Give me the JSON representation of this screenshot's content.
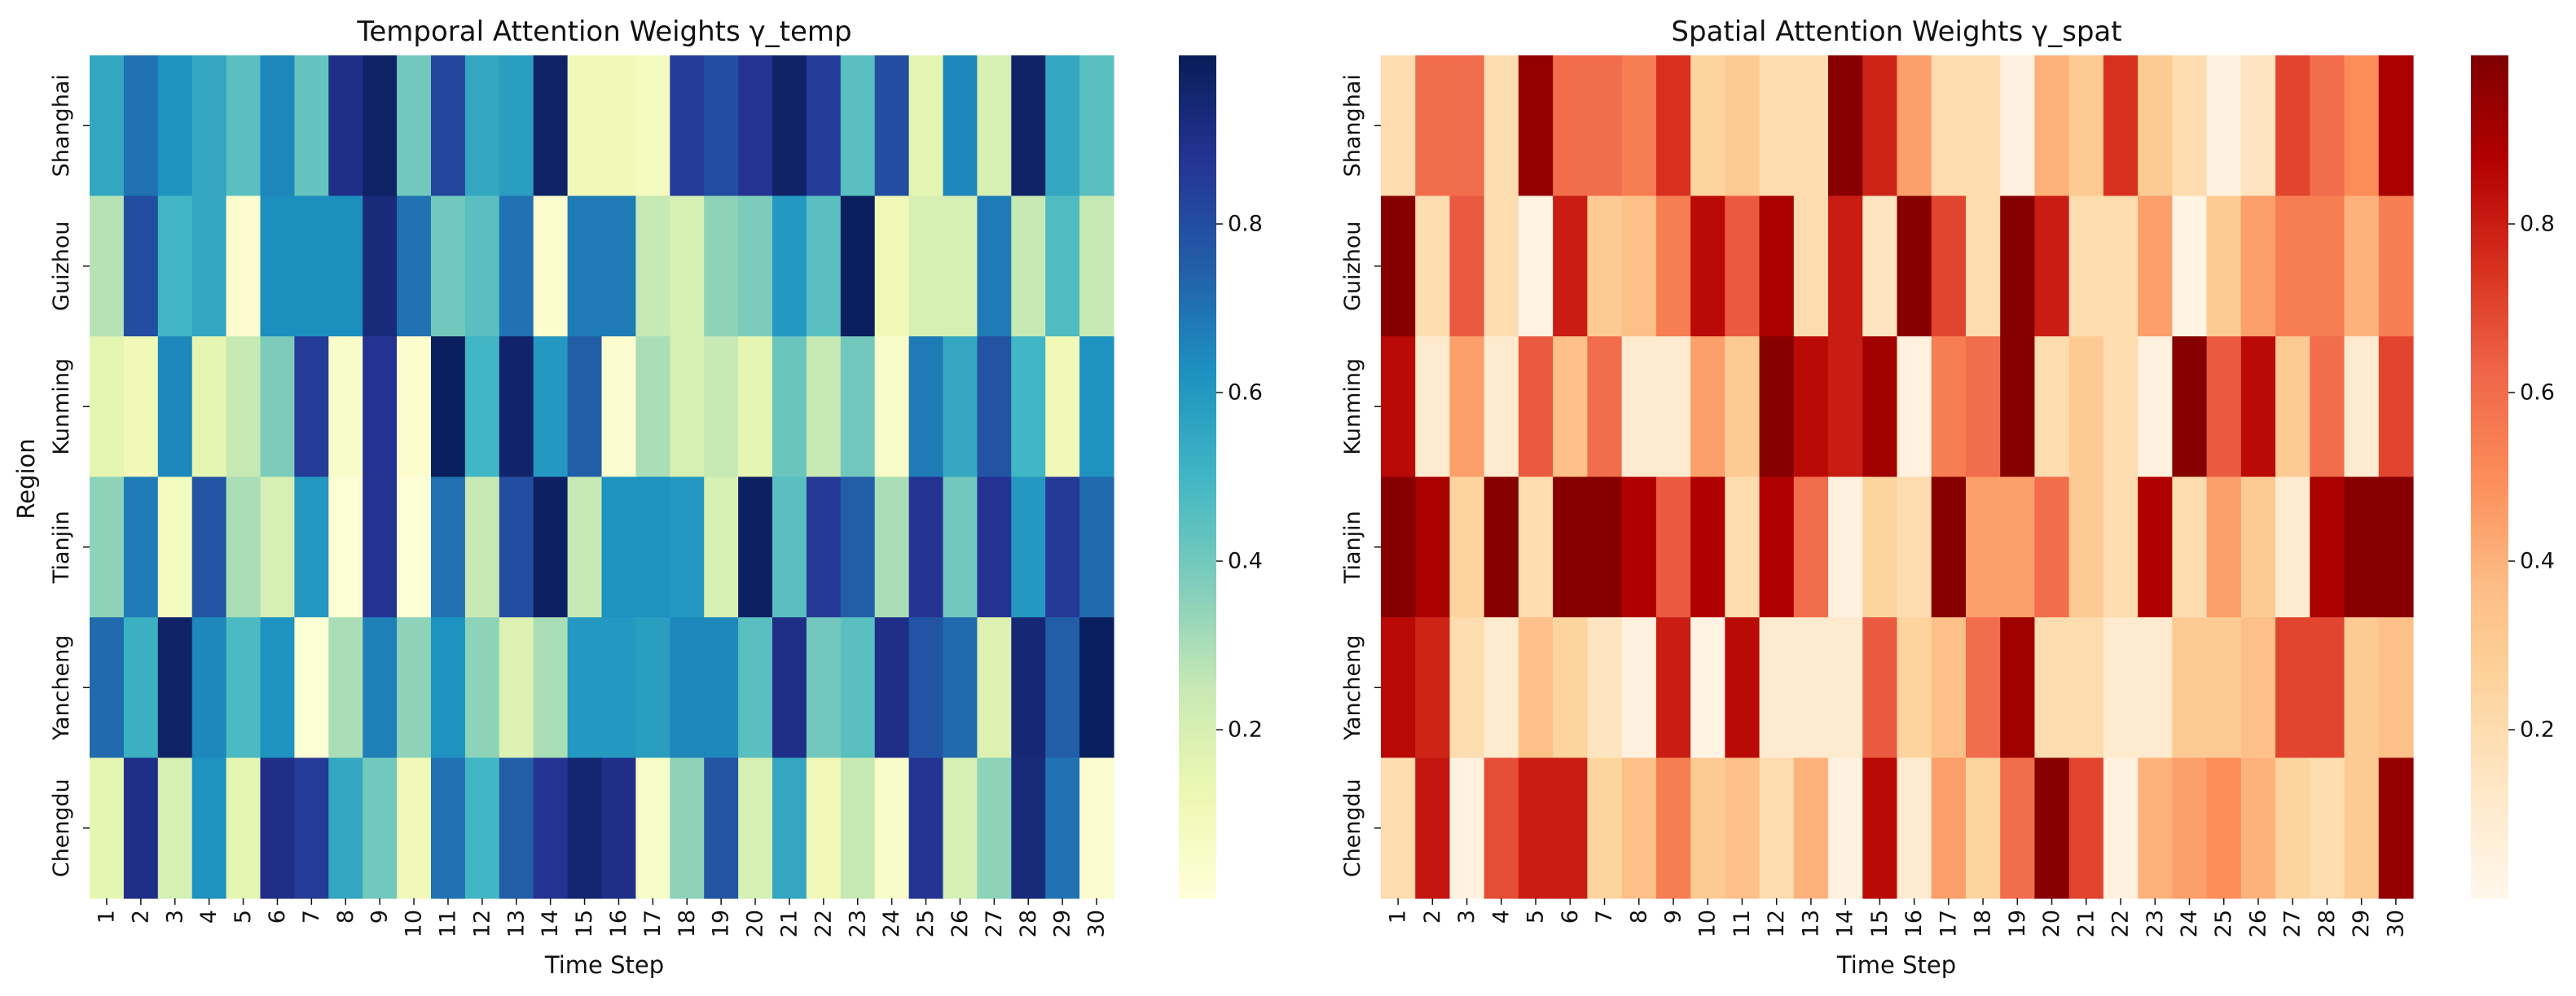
{
  "chart_data": [
    {
      "type": "heatmap",
      "title": "Temporal Attention Weights γ_temp",
      "xlabel": "Time Step",
      "ylabel": "Region",
      "x_ticks": [
        "1",
        "2",
        "3",
        "4",
        "5",
        "6",
        "7",
        "8",
        "9",
        "10",
        "11",
        "12",
        "13",
        "14",
        "15",
        "16",
        "17",
        "18",
        "19",
        "20",
        "21",
        "22",
        "23",
        "24",
        "25",
        "26",
        "27",
        "28",
        "29",
        "30"
      ],
      "rows": [
        "Shanghai",
        "Guizhou",
        "Kunming",
        "Tianjin",
        "Yancheng",
        "Chengdu"
      ],
      "colormap": "YlGnBu",
      "vmin": 0.0,
      "vmax": 1.0,
      "colorbar_ticks": [
        "0.2",
        "0.4",
        "0.6",
        "0.8"
      ],
      "values": [
        [
          0.55,
          0.7,
          0.62,
          0.55,
          0.45,
          0.65,
          0.43,
          0.9,
          0.97,
          0.4,
          0.82,
          0.55,
          0.58,
          0.97,
          0.1,
          0.1,
          0.08,
          0.85,
          0.8,
          0.88,
          0.97,
          0.85,
          0.45,
          0.8,
          0.15,
          0.65,
          0.2,
          0.97,
          0.55,
          0.45
        ],
        [
          0.28,
          0.8,
          0.5,
          0.55,
          0.03,
          0.63,
          0.63,
          0.63,
          0.93,
          0.7,
          0.4,
          0.45,
          0.7,
          0.03,
          0.68,
          0.68,
          0.25,
          0.2,
          0.35,
          0.38,
          0.6,
          0.45,
          0.99,
          0.1,
          0.2,
          0.2,
          0.68,
          0.25,
          0.47,
          0.25
        ],
        [
          0.15,
          0.1,
          0.65,
          0.15,
          0.25,
          0.38,
          0.85,
          0.05,
          0.88,
          0.03,
          0.99,
          0.5,
          0.96,
          0.6,
          0.75,
          0.03,
          0.3,
          0.2,
          0.25,
          0.15,
          0.42,
          0.25,
          0.4,
          0.05,
          0.68,
          0.55,
          0.78,
          0.5,
          0.1,
          0.62
        ],
        [
          0.35,
          0.68,
          0.08,
          0.78,
          0.3,
          0.2,
          0.6,
          0.02,
          0.88,
          0.02,
          0.7,
          0.25,
          0.8,
          0.98,
          0.25,
          0.62,
          0.62,
          0.6,
          0.2,
          0.98,
          0.45,
          0.86,
          0.75,
          0.3,
          0.88,
          0.4,
          0.88,
          0.6,
          0.86,
          0.72
        ],
        [
          0.72,
          0.52,
          0.97,
          0.65,
          0.48,
          0.62,
          0.02,
          0.3,
          0.67,
          0.35,
          0.62,
          0.35,
          0.18,
          0.3,
          0.6,
          0.6,
          0.58,
          0.65,
          0.65,
          0.45,
          0.9,
          0.4,
          0.45,
          0.9,
          0.78,
          0.72,
          0.18,
          0.94,
          0.75,
          0.99
        ],
        [
          0.15,
          0.9,
          0.2,
          0.62,
          0.15,
          0.9,
          0.85,
          0.55,
          0.4,
          0.1,
          0.7,
          0.5,
          0.75,
          0.88,
          0.95,
          0.9,
          0.05,
          0.35,
          0.78,
          0.2,
          0.55,
          0.1,
          0.25,
          0.05,
          0.88,
          0.2,
          0.35,
          0.93,
          0.7,
          0.03
        ]
      ]
    },
    {
      "type": "heatmap",
      "title": "Spatial Attention Weights γ_spat",
      "xlabel": "Time Step",
      "ylabel": "",
      "x_ticks": [
        "1",
        "2",
        "3",
        "4",
        "5",
        "6",
        "7",
        "8",
        "9",
        "10",
        "11",
        "12",
        "13",
        "14",
        "15",
        "16",
        "17",
        "18",
        "19",
        "20",
        "21",
        "22",
        "23",
        "24",
        "25",
        "26",
        "27",
        "28",
        "29",
        "30"
      ],
      "rows": [
        "Shanghai",
        "Guizhou",
        "Kunming",
        "Tianjin",
        "Yancheng",
        "Chengdu"
      ],
      "colormap": "OrRd",
      "vmin": 0.0,
      "vmax": 1.0,
      "colorbar_ticks": [
        "0.2",
        "0.4",
        "0.6",
        "0.8"
      ],
      "values": [
        [
          0.2,
          0.6,
          0.6,
          0.2,
          0.95,
          0.6,
          0.6,
          0.55,
          0.75,
          0.25,
          0.3,
          0.2,
          0.2,
          0.98,
          0.78,
          0.45,
          0.2,
          0.2,
          0.05,
          0.4,
          0.3,
          0.75,
          0.3,
          0.2,
          0.05,
          0.15,
          0.7,
          0.6,
          0.5,
          0.9
        ],
        [
          0.98,
          0.2,
          0.65,
          0.2,
          0.03,
          0.8,
          0.3,
          0.35,
          0.55,
          0.85,
          0.65,
          0.9,
          0.2,
          0.8,
          0.15,
          0.98,
          0.7,
          0.2,
          0.98,
          0.8,
          0.2,
          0.2,
          0.45,
          0.03,
          0.3,
          0.45,
          0.55,
          0.55,
          0.4,
          0.55
        ],
        [
          0.85,
          0.1,
          0.45,
          0.1,
          0.65,
          0.35,
          0.6,
          0.1,
          0.1,
          0.45,
          0.3,
          0.98,
          0.85,
          0.8,
          0.92,
          0.05,
          0.55,
          0.6,
          0.98,
          0.2,
          0.3,
          0.2,
          0.05,
          0.98,
          0.65,
          0.85,
          0.3,
          0.6,
          0.1,
          0.7
        ],
        [
          0.98,
          0.9,
          0.25,
          0.98,
          0.2,
          0.98,
          0.98,
          0.88,
          0.65,
          0.88,
          0.2,
          0.88,
          0.6,
          0.05,
          0.25,
          0.2,
          0.98,
          0.45,
          0.45,
          0.6,
          0.3,
          0.2,
          0.88,
          0.2,
          0.45,
          0.3,
          0.1,
          0.9,
          0.98,
          0.98
        ],
        [
          0.85,
          0.78,
          0.2,
          0.1,
          0.35,
          0.25,
          0.15,
          0.05,
          0.8,
          0.03,
          0.85,
          0.1,
          0.1,
          0.1,
          0.65,
          0.25,
          0.35,
          0.6,
          0.92,
          0.2,
          0.2,
          0.1,
          0.1,
          0.3,
          0.3,
          0.35,
          0.7,
          0.7,
          0.3,
          0.35
        ],
        [
          0.2,
          0.82,
          0.05,
          0.68,
          0.8,
          0.8,
          0.25,
          0.35,
          0.55,
          0.3,
          0.35,
          0.2,
          0.4,
          0.05,
          0.85,
          0.1,
          0.45,
          0.25,
          0.6,
          0.98,
          0.7,
          0.05,
          0.4,
          0.45,
          0.5,
          0.4,
          0.25,
          0.2,
          0.3,
          0.95
        ]
      ]
    }
  ]
}
